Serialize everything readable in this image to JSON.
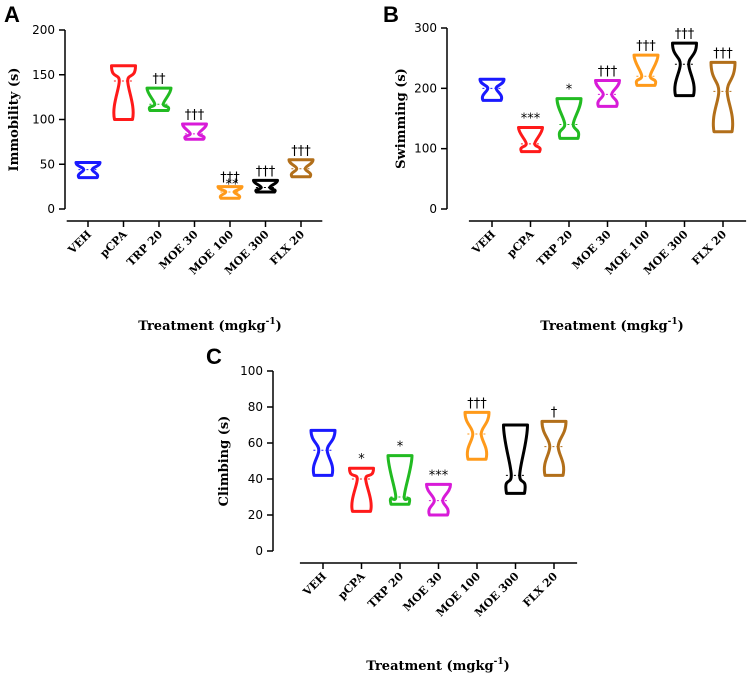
{
  "chart_data": [
    {
      "type": "violin",
      "panel": "A",
      "title": "",
      "xlabel": "Treatment (mgkg",
      "xlabel_sup": "-1",
      "xlabel_close": ")",
      "ylabel": "Immobility (s)",
      "ylim": [
        0,
        200
      ],
      "yticks": [
        0,
        50,
        100,
        150,
        200
      ],
      "categories": [
        "VEH",
        "pCPA",
        "TRP 20",
        "MOE 30",
        "MOE 100",
        "MOE 300",
        "FLX 20"
      ],
      "colors": [
        "#1a1aff",
        "#ff1a1a",
        "#22bb22",
        "#d81bd8",
        "#ff9a1a",
        "#000000",
        "#b26f1a"
      ],
      "min": [
        35,
        100,
        110,
        78,
        12,
        19,
        36
      ],
      "max": [
        52,
        160,
        135,
        95,
        25,
        32,
        55
      ],
      "median": [
        44,
        143,
        117,
        84,
        19,
        24,
        45
      ],
      "annotations": [
        "",
        "",
        "††",
        "†††",
        "†††",
        "†††",
        "†††"
      ],
      "annotations2": [
        "",
        "",
        "",
        "",
        "**",
        "",
        ""
      ]
    },
    {
      "type": "violin",
      "panel": "B",
      "title": "",
      "xlabel": "Treatment (mgkg",
      "xlabel_sup": "-1",
      "xlabel_close": ")",
      "ylabel": "Swimming (s)",
      "ylim": [
        0,
        300
      ],
      "yticks": [
        0,
        100,
        200,
        300
      ],
      "categories": [
        "VEH",
        "pCPA",
        "TRP 20",
        "MOE 30",
        "MOE 100",
        "MOE 300",
        "FLX 20"
      ],
      "colors": [
        "#1a1aff",
        "#ff1a1a",
        "#22bb22",
        "#d81bd8",
        "#ff9a1a",
        "#000000",
        "#b26f1a"
      ],
      "min": [
        180,
        95,
        117,
        170,
        205,
        188,
        128
      ],
      "max": [
        215,
        135,
        183,
        213,
        255,
        275,
        243
      ],
      "median": [
        200,
        108,
        140,
        190,
        220,
        240,
        195
      ],
      "annotations": [
        "",
        "***",
        "*",
        "†††",
        "†††",
        "†††",
        "†††"
      ],
      "annotations2": [
        "",
        "",
        "",
        "",
        "",
        "",
        ""
      ]
    },
    {
      "type": "violin",
      "panel": "C",
      "title": "",
      "xlabel": "Treatment (mgkg",
      "xlabel_sup": "-1",
      "xlabel_close": ")",
      "ylabel": "Climbing (s)",
      "ylim": [
        0,
        100
      ],
      "yticks": [
        0,
        20,
        40,
        60,
        80,
        100
      ],
      "categories": [
        "VEH",
        "pCPA",
        "TRP 20",
        "MOE 30",
        "MOE 100",
        "MOE 300",
        "FLX 20"
      ],
      "colors": [
        "#1a1aff",
        "#ff1a1a",
        "#22bb22",
        "#d81bd8",
        "#ff9a1a",
        "#000000",
        "#b26f1a"
      ],
      "min": [
        42,
        22,
        26,
        20,
        51,
        32,
        42
      ],
      "max": [
        67,
        46,
        53,
        37,
        77,
        70,
        72
      ],
      "median": [
        56,
        40,
        30,
        28,
        65,
        42,
        58
      ],
      "annotations": [
        "",
        "*",
        "*",
        "***",
        "†††",
        "",
        "†"
      ],
      "annotations2": [
        "",
        "",
        "",
        "",
        "",
        "",
        ""
      ]
    }
  ]
}
